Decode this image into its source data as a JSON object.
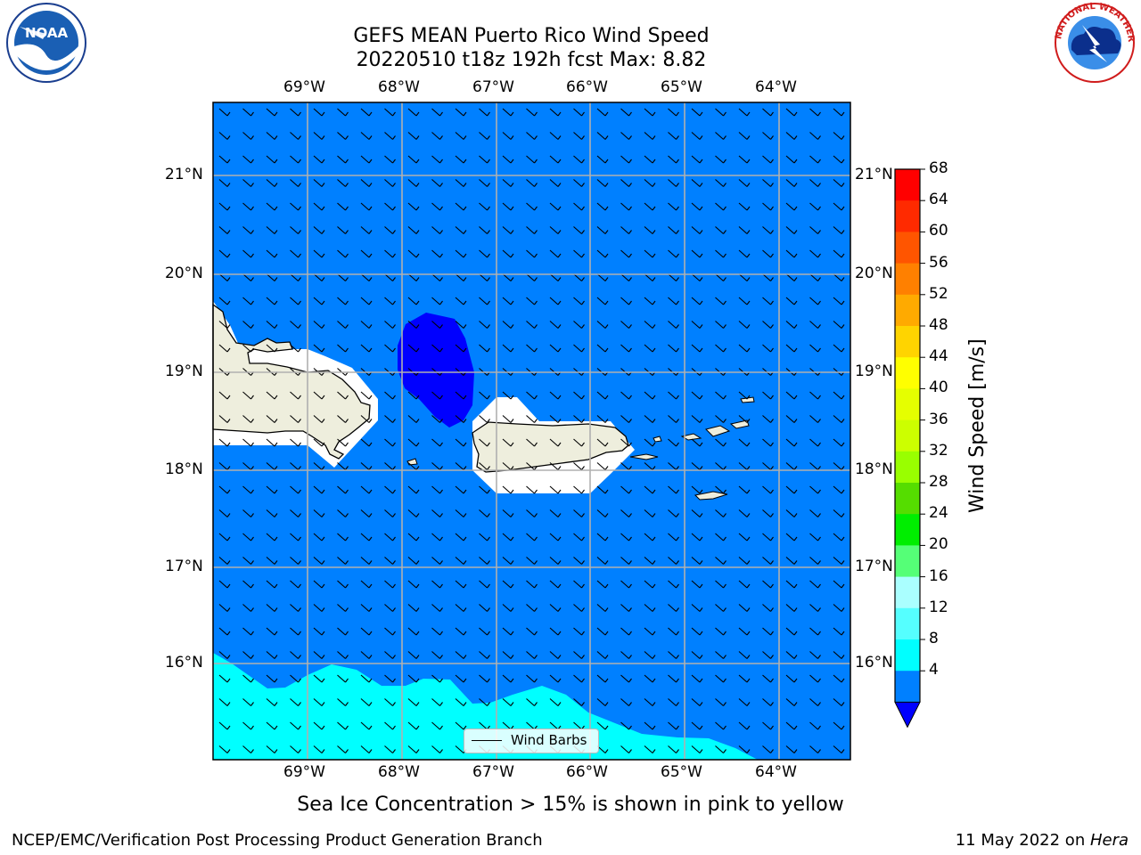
{
  "title": {
    "line1": "GEFS MEAN Puerto Rico Wind Speed",
    "line2": "20220510 t18z 192h fcst   Max: 8.82"
  },
  "logos": {
    "left": "NOAA",
    "right_ring": "NATIONAL WEATHER SERVICE"
  },
  "axes": {
    "lon_labels": [
      "69°W",
      "68°W",
      "67°W",
      "66°W",
      "65°W",
      "64°W"
    ],
    "lat_labels": [
      "21°N",
      "20°N",
      "19°N",
      "18°N",
      "17°N",
      "16°N"
    ]
  },
  "legend": {
    "label": "Wind Barbs"
  },
  "colorbar": {
    "label": "Wind Speed [m/s]",
    "ticks": [
      "68",
      "64",
      "60",
      "56",
      "52",
      "48",
      "44",
      "40",
      "36",
      "32",
      "28",
      "24",
      "20",
      "16",
      "12",
      "8",
      "4"
    ],
    "colors": [
      "#ff0000",
      "#ff2a00",
      "#ff5500",
      "#ff8000",
      "#ffaa00",
      "#ffd400",
      "#ffff00",
      "#e5ff00",
      "#ccff00",
      "#99ff00",
      "#55dd00",
      "#00ee00",
      "#55ff77",
      "#aaffff",
      "#55ffff",
      "#00ffff",
      "#0080ff"
    ],
    "extend_color": "#0000ff"
  },
  "map_colors": {
    "ocean": "#0080ff",
    "calm": "#0000ff",
    "band": "#00ffff",
    "land": "#eeeedd"
  },
  "note": "Sea Ice Concentration > 15% is shown in pink to yellow",
  "footer": {
    "left": "NCEP/EMC/Verification Post Processing Product Generation Branch",
    "right_date": "11 May 2022 on ",
    "right_host": "Hera"
  }
}
